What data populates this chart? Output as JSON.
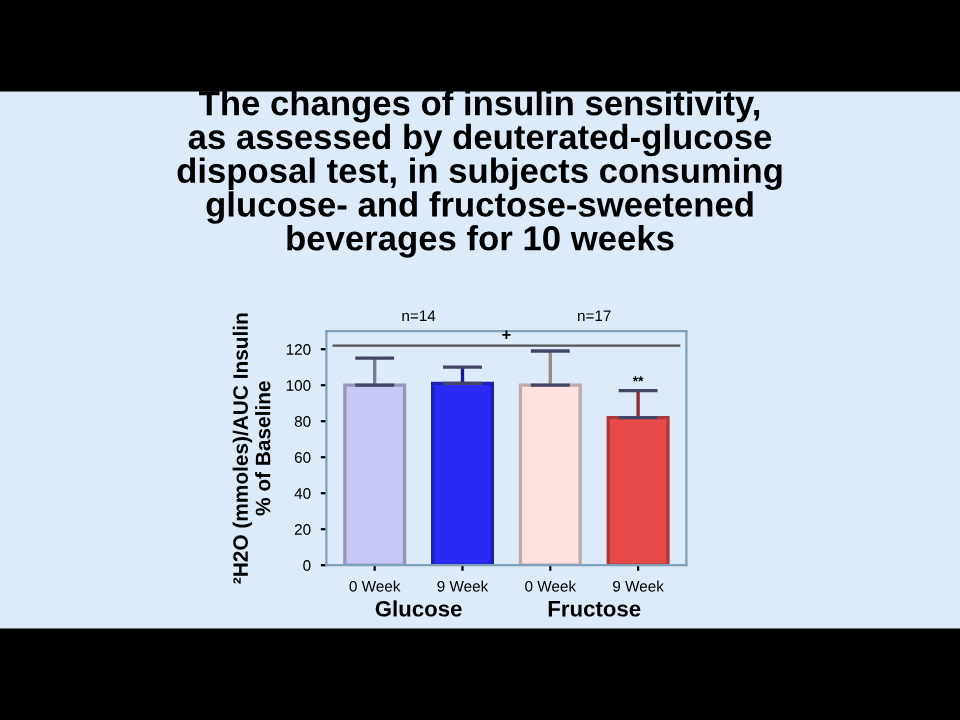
{
  "chart_data": {
    "type": "bar",
    "title": "The changes of insulin sensitivity,\nas assessed by deuterated-glucose\ndisposal test, in subjects consuming\nglucose- and fructose-sweetened\nbeverages for 10 weeks",
    "ylabel": "²H2O (mmoles)/AUC Insulin\n% of Baseline",
    "categories": [
      "0 Week",
      "9 Week",
      "0 Week",
      "9 Week"
    ],
    "values": [
      100,
      101,
      100,
      82
    ],
    "colors": [
      "#c8c8f6",
      "#2a2af2",
      "#fde2e0",
      "#e84a4a"
    ],
    "errors": [
      [
        100,
        115
      ],
      [
        101,
        110
      ],
      [
        100,
        119
      ],
      [
        82,
        97
      ]
    ],
    "ylim": [
      0,
      130
    ],
    "yticks": [
      0,
      20,
      40,
      60,
      80,
      100,
      120
    ],
    "ref_lines": [
      {
        "axis": "y",
        "value": 122,
        "label": "+",
        "color": "#555555"
      }
    ],
    "annotations": [
      "n=14",
      "n=17",
      "**",
      "Glucose",
      "Fructose"
    ]
  }
}
